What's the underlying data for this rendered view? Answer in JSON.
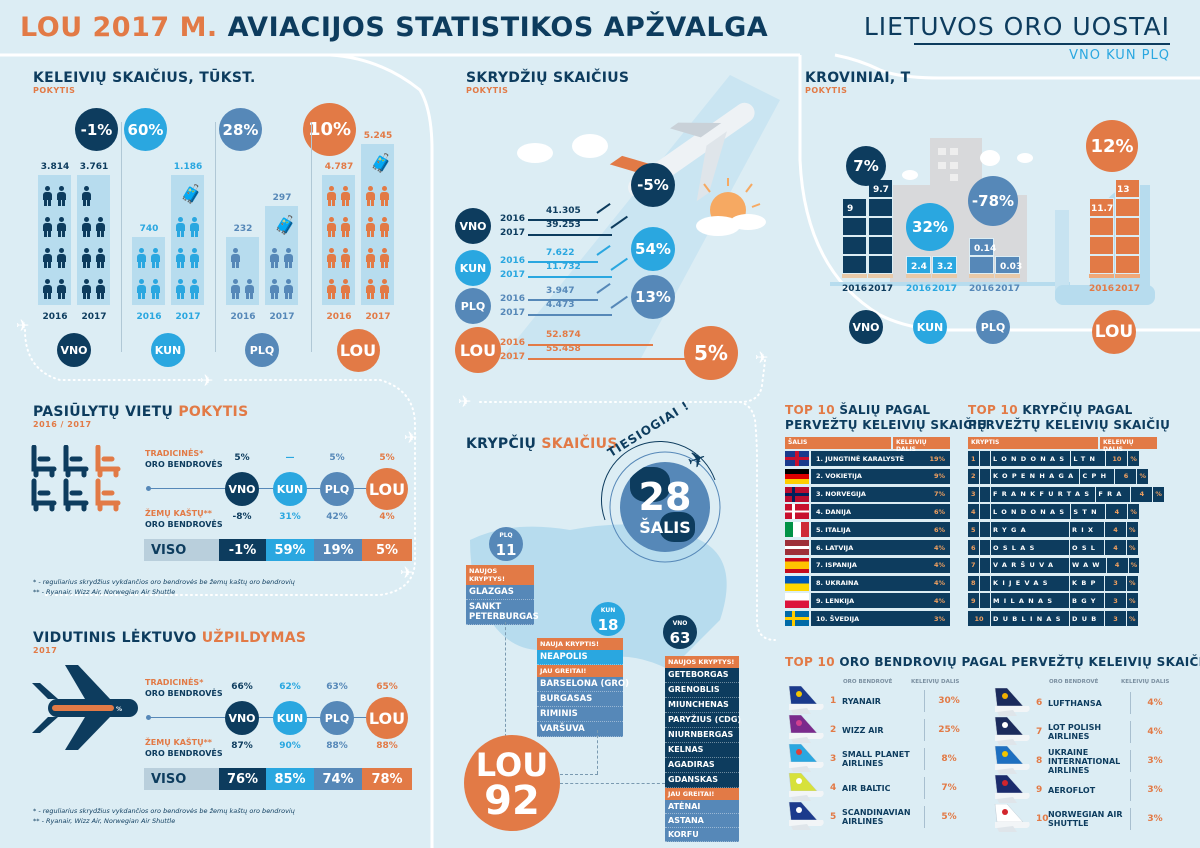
{
  "header": {
    "title_accent": "LOU 2017 M.",
    "title_main": "AVIACIJOS STATISTIKOS APŽVALGA",
    "logo_main": "LIETUVOS ORO UOSTAI",
    "logo_sub": "VNO KUN PLQ"
  },
  "colors": {
    "navy": "#0d3c5e",
    "light": "#2aa7e0",
    "mid": "#5688b8",
    "orange": "#e27a46",
    "bg": "#dcedf4"
  },
  "passengers": {
    "title": "KELEIVIŲ SKAIČIUS, TŪKST.",
    "subtitle": "POKYTIS",
    "groups": [
      {
        "code": "VNO",
        "change": "-1%",
        "v2016": "3.814",
        "v2017": "3.761",
        "y2016": "2016",
        "y2017": "2017",
        "icons2016": 8,
        "icons2017": 7,
        "traveler2017": false
      },
      {
        "code": "KUN",
        "change": "60%",
        "v2016": "740",
        "v2017": "1.186",
        "y2016": "2016",
        "y2017": "2017",
        "icons2016": 4,
        "icons2017": 6,
        "traveler2017": true
      },
      {
        "code": "PLQ",
        "change": "28%",
        "v2016": "232",
        "v2017": "297",
        "y2016": "2016",
        "y2017": "2017",
        "icons2016": 3,
        "icons2017": 4,
        "traveler2017": true
      },
      {
        "code": "LOU",
        "change": "10%",
        "v2016": "4.787",
        "v2017": "5.245",
        "y2016": "2016",
        "y2017": "2017",
        "icons2016": 8,
        "icons2017": 8,
        "traveler2017": true
      }
    ]
  },
  "flights": {
    "title": "SKRYDŽIŲ SKAIČIUS",
    "subtitle": "POKYTIS",
    "rows": [
      {
        "code": "VNO",
        "change": "-5%",
        "y2016": "2016",
        "y2017": "2017",
        "v2016": "41.305",
        "v2017": "39.253"
      },
      {
        "code": "KUN",
        "change": "54%",
        "y2016": "2016",
        "y2017": "2017",
        "v2016": "7.622",
        "v2017": "11.732"
      },
      {
        "code": "PLQ",
        "change": "13%",
        "y2016": "2016",
        "y2017": "2017",
        "v2016": "3.947",
        "v2017": "4.473"
      },
      {
        "code": "LOU",
        "change": "5%",
        "y2016": "2016",
        "y2017": "2017",
        "v2016": "52.874",
        "v2017": "55.458"
      }
    ]
  },
  "cargo": {
    "title": "KROVINIAI, T",
    "subtitle": "POKYTIS",
    "groups": [
      {
        "code": "VNO",
        "change": "7%",
        "v2016": "9",
        "v2017": "9.7",
        "y2016": "2016",
        "y2017": "2017"
      },
      {
        "code": "KUN",
        "change": "32%",
        "v2016": "2.4",
        "v2017": "3.2",
        "y2016": "2016",
        "y2017": "2017"
      },
      {
        "code": "PLQ",
        "change": "-78%",
        "v2016": "0.14",
        "v2017": "0.03",
        "y2016": "2016",
        "y2017": "2017"
      },
      {
        "code": "LOU",
        "change": "12%",
        "v2016": "11.7",
        "v2017": "13",
        "y2016": "2016",
        "y2017": "2017"
      }
    ]
  },
  "seats": {
    "title_main": "PASIŪLYTŲ VIETŲ",
    "title_accent": "POKYTIS",
    "subtitle": "2016 / 2017",
    "trad_label_1": "TRADICINĖS*",
    "trad_label_2": "ORO BENDROVĖS",
    "low_label_1": "ŽEMŲ KAŠTŲ**",
    "low_label_2": "ORO BENDROVĖS",
    "total_label": "VISO",
    "airports": [
      {
        "code": "VNO",
        "trad": "5%",
        "low": "-8%",
        "total": "-1%"
      },
      {
        "code": "KUN",
        "trad": "—",
        "low": "31%",
        "total": "59%"
      },
      {
        "code": "PLQ",
        "trad": "5%",
        "low": "42%",
        "total": "19%"
      },
      {
        "code": "LOU",
        "trad": "5%",
        "low": "4%",
        "total": "5%"
      }
    ],
    "footnote_1": "* - reguliarius skrydžius vykdančios oro bendrovės be žemų kaštų oro bendrovių",
    "footnote_2": "** - Ryanair, Wizz Air, Norwegian Air Shuttle"
  },
  "loadfactor": {
    "title_main": "VIDUTINIS LĖKTUVO",
    "title_accent": "UŽPILDYMAS",
    "subtitle": "2017",
    "plane_label": "%",
    "trad_label_1": "TRADICINĖS*",
    "trad_label_2": "ORO BENDROVĖS",
    "low_label_1": "ŽEMŲ KAŠTŲ**",
    "low_label_2": "ORO BENDROVĖS",
    "total_label": "VISO",
    "airports": [
      {
        "code": "VNO",
        "trad": "66%",
        "low": "87%",
        "total": "76%"
      },
      {
        "code": "KUN",
        "trad": "62%",
        "low": "90%",
        "total": "85%"
      },
      {
        "code": "PLQ",
        "trad": "63%",
        "low": "88%",
        "total": "74%"
      },
      {
        "code": "LOU",
        "trad": "65%",
        "low": "88%",
        "total": "78%"
      }
    ],
    "footnote_1": "* - reguliarius skrydžius vykdančios oro bendrovės be žemų kaštų oro bendrovių",
    "footnote_2": "** - Ryanair, Wizz Air, Norwegian Air Shuttle"
  },
  "routes": {
    "title_main": "KRYPČIŲ",
    "title_accent": "SKAIČIUS",
    "direct_label": "TIESIOGIAI !",
    "countries_num": "28",
    "countries_label": "ŠALIS",
    "total_code": "LOU",
    "total_num": "92",
    "plq": {
      "code": "PLQ",
      "num": "11",
      "new_label": "NAUJOS KRYPTYS!",
      "new": [
        "GLAZGAS",
        "SANKT PETERBURGAS"
      ]
    },
    "kun": {
      "code": "KUN",
      "num": "18",
      "new_label": "NAUJA KRYPTIS!",
      "new": [
        "NEAPOLIS"
      ],
      "soon_label": "JAU GREITAI!",
      "soon": [
        "BARSELONA (GRO)",
        "BURGASAS",
        "RIMINIS",
        "VARŠUVA"
      ]
    },
    "vno": {
      "code": "VNO",
      "num": "63",
      "new_label": "NAUJOS KRYPTYS!",
      "new": [
        "GETEBORGAS",
        "GRENOBLIS",
        "MIUNCHENAS",
        "PARYŽIUS (CDG)",
        "NIURNBERGAS",
        "KELNAS",
        "AGADIRAS",
        "GDANSKAS"
      ],
      "soon_label": "JAU GREITAI!",
      "soon": [
        "ATĖNAI",
        "ASTANA",
        "KORFU"
      ]
    }
  },
  "top_countries": {
    "title_accent": "TOP 10",
    "title_main_1": "ŠALIŲ PAGAL",
    "title_main_2": "PERVEŽTŲ KELEIVIŲ SKAIČIŲ",
    "col_1": "ŠALIS",
    "col_2": "KELEIVIŲ DALIS",
    "rows": [
      {
        "name": "1. JUNGTINĖ KARALYSTĖ",
        "share": "19%",
        "flag": "gb"
      },
      {
        "name": "2. VOKIETIJA",
        "share": "9%",
        "flag": "de"
      },
      {
        "name": "3. NORVEGIJA",
        "share": "7%",
        "flag": "no"
      },
      {
        "name": "4. DANIJA",
        "share": "6%",
        "flag": "dk"
      },
      {
        "name": "5. ITALIJA",
        "share": "6%",
        "flag": "it"
      },
      {
        "name": "6. LATVIJA",
        "share": "4%",
        "flag": "lv"
      },
      {
        "name": "7. ISPANIJA",
        "share": "4%",
        "flag": "es"
      },
      {
        "name": "8. UKRAINA",
        "share": "4%",
        "flag": "ua"
      },
      {
        "name": "9. LENKIJA",
        "share": "4%",
        "flag": "pl"
      },
      {
        "name": "10. ŠVEDIJA",
        "share": "3%",
        "flag": "se"
      }
    ]
  },
  "top_routes": {
    "title_accent": "TOP 10",
    "title_main_1": "KRYPČIŲ PAGAL",
    "title_main_2": "PERVEŽTŲ KELEIVIŲ SKAIČIŲ",
    "col_1": "KRYPTIS",
    "col_2": "KELEIVIŲ DALIS",
    "rows": [
      {
        "rank": "1",
        "city": "LONDONAS",
        "code": "LTN",
        "share": "10"
      },
      {
        "rank": "2",
        "city": "KOPENHAGA",
        "code": "CPH",
        "share": "6"
      },
      {
        "rank": "3",
        "city": "FRANKFURTAS",
        "code": "FRA",
        "share": "4"
      },
      {
        "rank": "4",
        "city": "LONDONAS",
        "code": "STN",
        "share": "4"
      },
      {
        "rank": "5",
        "city": "RYGA",
        "code": "RIX",
        "share": "4"
      },
      {
        "rank": "6",
        "city": "OSLAS",
        "code": "OSL",
        "share": "4"
      },
      {
        "rank": "7",
        "city": "VARŠUVA",
        "code": "WAW",
        "share": "4"
      },
      {
        "rank": "8",
        "city": "KIJEVAS",
        "code": "KBP",
        "share": "3"
      },
      {
        "rank": "9",
        "city": "MILANAS",
        "code": "BGY",
        "share": "3"
      },
      {
        "rank": "10",
        "city": "DUBLINAS",
        "code": "DUB",
        "share": "3"
      }
    ],
    "pct_sign": "%"
  },
  "top_airlines": {
    "title_accent": "TOP 10",
    "title_main": "ORO BENDROVIŲ PAGAL PERVEŽTŲ KELEIVIŲ SKAIČIŲ",
    "col_1": "ORO BENDROVĖ",
    "col_2": "KELEIVIŲ DALIS",
    "rows": [
      {
        "rank": "1",
        "name": "RYANAIR",
        "share": "30%",
        "tail": "#1b3a8c",
        "accent": "#f2c500"
      },
      {
        "rank": "2",
        "name": "WIZZ AIR",
        "share": "25%",
        "tail": "#7b2a8c",
        "accent": "#d2408f"
      },
      {
        "rank": "3",
        "name": "SMALL PLANET AIRLINES",
        "share": "8%",
        "tail": "#2aa7e0",
        "accent": "#e0403a"
      },
      {
        "rank": "4",
        "name": "AIR BALTIC",
        "share": "7%",
        "tail": "#d7e13b",
        "accent": "#ffffff"
      },
      {
        "rank": "5",
        "name": "SCANDINAVIAN AIRLINES",
        "share": "5%",
        "tail": "#1b3a8c",
        "accent": "#ffffff"
      },
      {
        "rank": "6",
        "name": "LUFTHANSA",
        "share": "4%",
        "tail": "#1b2b5c",
        "accent": "#f2b000"
      },
      {
        "rank": "7",
        "name": "LOT POLISH AIRLINES",
        "share": "4%",
        "tail": "#1b2b5c",
        "accent": "#ffffff"
      },
      {
        "rank": "8",
        "name": "UKRAINE INTERNATIONAL AIRLINES",
        "share": "3%",
        "tail": "#1d6fc0",
        "accent": "#f2c500"
      },
      {
        "rank": "9",
        "name": "AEROFLOT",
        "share": "3%",
        "tail": "#1b2b6c",
        "accent": "#d2252c"
      },
      {
        "rank": "10",
        "name": "NORWEGIAN AIR SHUTTLE",
        "share": "3%",
        "tail": "#ffffff",
        "accent": "#d2252c"
      }
    ]
  }
}
